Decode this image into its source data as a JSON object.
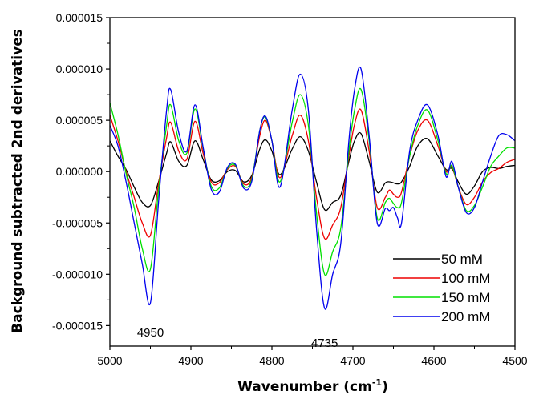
{
  "chart_data": {
    "type": "line",
    "xlabel": "Wavenumber (cm",
    "xlabel_sup": "-1",
    "xlabel_close": ")",
    "ylabel": "Background subtracted 2nd derivatives",
    "xlim": [
      5000,
      4500
    ],
    "ylim": [
      -1.7e-05,
      1.5e-05
    ],
    "x_ticks": [
      5000,
      4900,
      4800,
      4700,
      4600,
      4500
    ],
    "x_tick_labels": [
      "5000",
      "4900",
      "4800",
      "4700",
      "4600",
      "4500"
    ],
    "y_ticks": [
      1.5e-05,
      1e-05,
      5e-06,
      0,
      -5e-06,
      -1e-05,
      -1.5e-05
    ],
    "y_tick_labels": [
      "0.000015",
      "0.000010",
      "0.000005",
      "0.000000",
      "-0.000005",
      "-0.000010",
      "-0.000015"
    ],
    "grid": false,
    "legend_position": "bottom-right",
    "annotations": [
      {
        "text": "4950",
        "x": 4950,
        "y": -1.45e-05
      },
      {
        "text": "4735",
        "x": 4735,
        "y": -1.55e-05
      }
    ],
    "x": [
      5000,
      4990,
      4980,
      4970,
      4960,
      4950,
      4940,
      4930,
      4925,
      4915,
      4905,
      4895,
      4885,
      4875,
      4865,
      4855,
      4845,
      4835,
      4825,
      4815,
      4808,
      4800,
      4790,
      4775,
      4765,
      4755,
      4745,
      4735,
      4725,
      4715,
      4705,
      4698,
      4690,
      4680,
      4670,
      4660,
      4655,
      4650,
      4645,
      4640,
      4630,
      4620,
      4608,
      4595,
      4585,
      4578,
      4570,
      4560,
      4550,
      4540,
      4530,
      4520,
      4510,
      4500
    ],
    "series": [
      {
        "name": "50 mM",
        "color": "#000000",
        "values": [
          3.0,
          1.5,
          0.2,
          -1.5,
          -3.0,
          -3.3,
          -1.0,
          1.8,
          2.9,
          1.0,
          0.6,
          3.0,
          1.2,
          -0.8,
          -0.9,
          0.0,
          0.1,
          -1.0,
          -0.4,
          2.2,
          3.1,
          2.0,
          -0.3,
          2.2,
          3.4,
          2.0,
          -1.0,
          -3.7,
          -3.0,
          -2.3,
          1.0,
          3.0,
          3.7,
          1.0,
          -2.0,
          -1.1,
          -1.0,
          -1.1,
          -1.2,
          -1.0,
          0.5,
          2.5,
          3.2,
          1.5,
          0.2,
          0.3,
          -1.0,
          -2.2,
          -1.4,
          0.0,
          0.4,
          0.3,
          0.5,
          0.6
        ]
      },
      {
        "name": "100 mM",
        "color": "#ee0000",
        "values": [
          5.5,
          3.0,
          0.0,
          -2.5,
          -5.0,
          -6.2,
          -1.2,
          3.3,
          4.8,
          2.0,
          1.2,
          4.9,
          1.8,
          -1.0,
          -1.1,
          0.2,
          0.5,
          -1.2,
          -0.6,
          3.5,
          5.0,
          3.0,
          -0.6,
          3.5,
          5.5,
          3.0,
          -2.5,
          -6.5,
          -5.2,
          -3.5,
          1.5,
          4.6,
          6.0,
          2.0,
          -3.5,
          -2.5,
          -1.8,
          -2.2,
          -2.5,
          -2.0,
          1.5,
          4.0,
          5.0,
          2.5,
          0.0,
          0.5,
          -1.5,
          -3.2,
          -2.5,
          -1.0,
          -0.1,
          0.3,
          0.9,
          1.2
        ]
      },
      {
        "name": "150 mM",
        "color": "#00e000",
        "values": [
          6.7,
          3.6,
          -0.2,
          -3.5,
          -7.5,
          -9.5,
          -1.8,
          4.5,
          6.5,
          3.0,
          1.8,
          6.1,
          2.3,
          -1.4,
          -1.6,
          0.3,
          0.6,
          -1.4,
          -0.8,
          4.0,
          5.3,
          3.0,
          -1.0,
          4.8,
          7.5,
          4.5,
          -4.0,
          -10.0,
          -7.8,
          -5.5,
          2.0,
          6.0,
          8.0,
          3.0,
          -4.5,
          -3.0,
          -2.6,
          -3.1,
          -3.5,
          -3.0,
          1.5,
          4.5,
          6.0,
          3.0,
          -0.2,
          0.6,
          -1.5,
          -3.8,
          -3.3,
          -1.5,
          0.5,
          1.5,
          2.3,
          2.3
        ]
      },
      {
        "name": "200 mM",
        "color": "#0000ee",
        "values": [
          4.5,
          2.5,
          -1.0,
          -5.0,
          -9.0,
          -12.8,
          -3.0,
          6.0,
          8.0,
          3.8,
          2.0,
          6.5,
          2.4,
          -1.7,
          -2.0,
          0.4,
          0.7,
          -1.6,
          -1.0,
          4.0,
          5.4,
          3.0,
          -1.5,
          6.0,
          9.5,
          6.0,
          -5.5,
          -13.3,
          -10.0,
          -7.0,
          3.0,
          8.0,
          10.0,
          3.5,
          -5.0,
          -3.6,
          -3.8,
          -3.5,
          -4.5,
          -5.0,
          2.0,
          5.0,
          6.5,
          3.5,
          -0.5,
          1.0,
          -1.5,
          -4.0,
          -3.5,
          -1.0,
          1.5,
          3.5,
          3.6,
          3.0
        ]
      }
    ],
    "value_scale": 1e-06
  }
}
